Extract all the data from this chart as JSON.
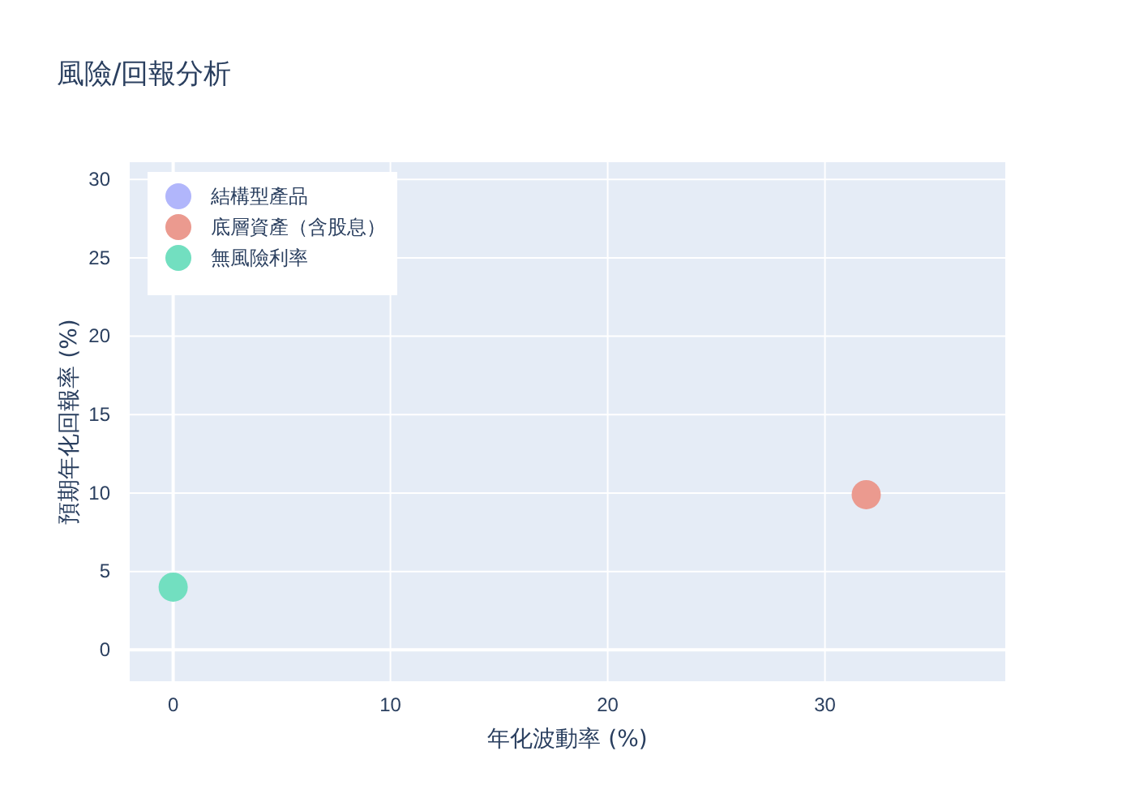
{
  "chart_data": {
    "type": "scatter",
    "title": "風險/回報分析",
    "xlabel": "年化波動率 (%)",
    "ylabel": "預期年化回報率 (%)",
    "xlim": [
      -2,
      38.3
    ],
    "xticks": [
      0,
      10,
      20,
      30
    ],
    "ylim": [
      -2,
      31.1
    ],
    "yticks": [
      0,
      5,
      10,
      15,
      20,
      25,
      30
    ],
    "series": [
      {
        "name": "結構型產品",
        "color": "#b1b6fb",
        "x": [
          null
        ],
        "values": [
          null
        ]
      },
      {
        "name": "底層資產（含股息）",
        "color": "#eb9a8f",
        "x": [
          31.9
        ],
        "values": [
          9.9
        ]
      },
      {
        "name": "無風險利率",
        "color": "#72dfc0",
        "x": [
          0
        ],
        "values": [
          4
        ]
      }
    ],
    "marker": "circle",
    "grid": true,
    "legend": "top left"
  }
}
